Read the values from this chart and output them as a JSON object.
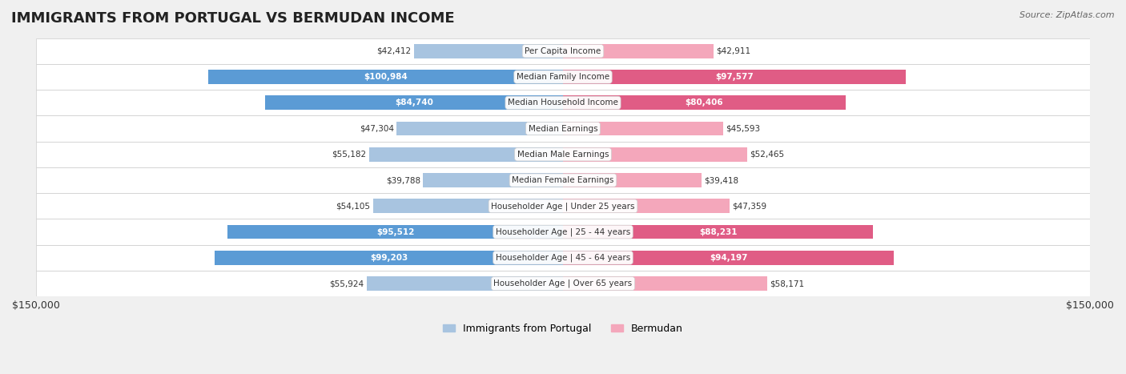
{
  "title": "IMMIGRANTS FROM PORTUGAL VS BERMUDAN INCOME",
  "source": "Source: ZipAtlas.com",
  "categories": [
    "Per Capita Income",
    "Median Family Income",
    "Median Household Income",
    "Median Earnings",
    "Median Male Earnings",
    "Median Female Earnings",
    "Householder Age | Under 25 years",
    "Householder Age | 25 - 44 years",
    "Householder Age | 45 - 64 years",
    "Householder Age | Over 65 years"
  ],
  "portugal_values": [
    42412,
    100984,
    84740,
    47304,
    55182,
    39788,
    54105,
    95512,
    99203,
    55924
  ],
  "bermudan_values": [
    42911,
    97577,
    80406,
    45593,
    52465,
    39418,
    47359,
    88231,
    94197,
    58171
  ],
  "portugal_labels": [
    "$42,412",
    "$100,984",
    "$84,740",
    "$47,304",
    "$55,182",
    "$39,788",
    "$54,105",
    "$95,512",
    "$99,203",
    "$55,924"
  ],
  "bermudan_labels": [
    "$42,911",
    "$97,577",
    "$80,406",
    "$45,593",
    "$52,465",
    "$39,418",
    "$47,359",
    "$88,231",
    "$94,197",
    "$58,171"
  ],
  "max_value": 150000,
  "portugal_color_light": "#a8c4e0",
  "portugal_color_dark": "#5b9bd5",
  "bermudan_color_light": "#f4a7bb",
  "bermudan_color_dark": "#e05c85",
  "background_color": "#f0f0f0",
  "row_background": "#f8f8f8",
  "label_inside_threshold": 70000,
  "legend_portugal": "Immigrants from Portugal",
  "legend_bermudan": "Bermudan"
}
